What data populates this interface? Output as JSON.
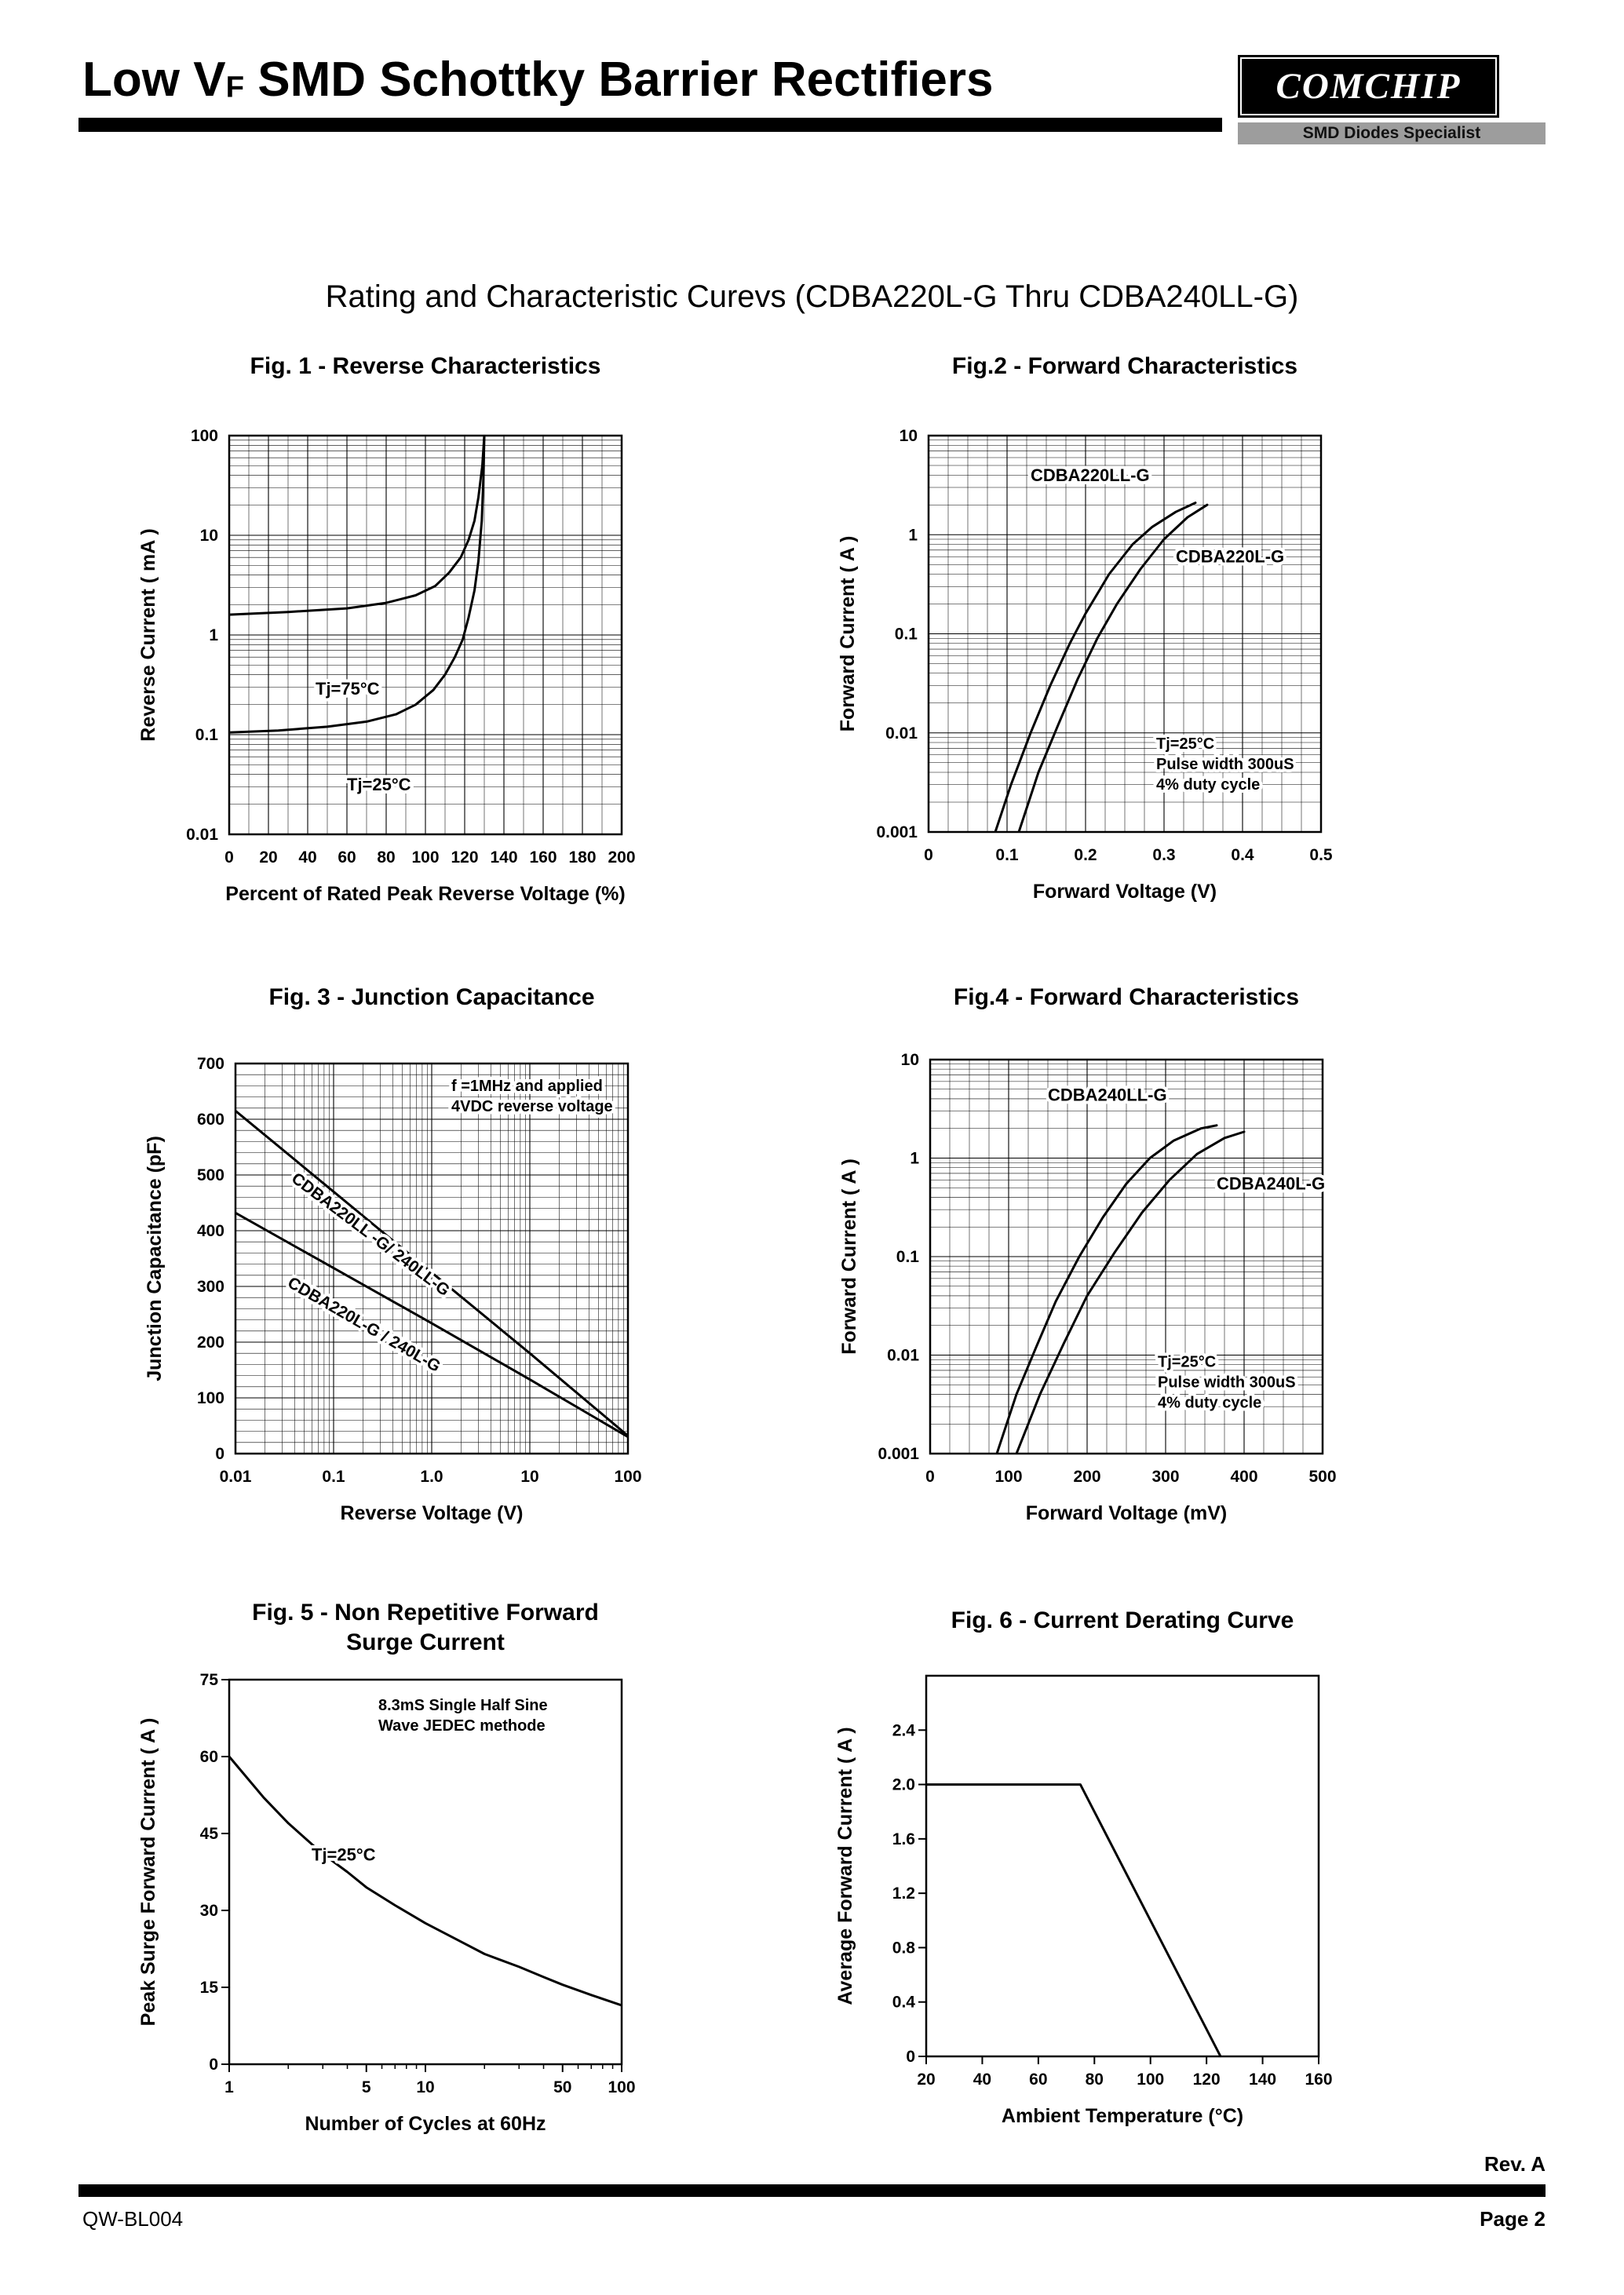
{
  "header": {
    "title_pre": "Low V",
    "title_sub": "F",
    "title_post": " SMD Schottky Barrier Rectifiers",
    "logo_text": "COMCHIP",
    "logo_tagline": "SMD Diodes Specialist"
  },
  "subtitle": "Rating and  Characteristic Curevs (CDBA220L-G Thru CDBA240LL-G)",
  "footer": {
    "rev": "Rev. A",
    "doc_number": "QW-BL004",
    "page": "Page 2"
  },
  "chart_data": [
    {
      "id": "fig1",
      "type": "line",
      "title": "Fig. 1 -  Reverse Characteristics",
      "xlabel": "Percent of Rated Peak Reverse Voltage (%)",
      "ylabel": "Reverse Current ( mA )",
      "x": {
        "type": "linear",
        "min": 0,
        "max": 200,
        "grid": true,
        "minorStep": 10,
        "majorStep": 20,
        "ticks": [
          [
            0,
            "0"
          ],
          [
            20,
            "20"
          ],
          [
            40,
            "40"
          ],
          [
            60,
            "60"
          ],
          [
            80,
            "80"
          ],
          [
            100,
            "100"
          ],
          [
            120,
            "120"
          ],
          [
            140,
            "140"
          ],
          [
            160,
            "160"
          ],
          [
            180,
            "180"
          ],
          [
            200,
            "200"
          ]
        ]
      },
      "y": {
        "type": "log",
        "min": 0.01,
        "max": 100,
        "grid": true,
        "ticks": [
          [
            100,
            "100"
          ],
          [
            10,
            "10"
          ],
          [
            1,
            "1"
          ],
          [
            0.1,
            "0.1"
          ],
          [
            0.01,
            "0.01"
          ]
        ]
      },
      "series": [
        {
          "name": "Tj-75C",
          "points": [
            [
              0,
              1.6
            ],
            [
              30,
              1.7
            ],
            [
              60,
              1.85
            ],
            [
              80,
              2.1
            ],
            [
              95,
              2.5
            ],
            [
              105,
              3.1
            ],
            [
              112,
              4.2
            ],
            [
              118,
              6
            ],
            [
              122,
              9
            ],
            [
              125,
              14
            ],
            [
              127,
              24
            ],
            [
              129,
              50
            ],
            [
              130,
              100
            ]
          ]
        },
        {
          "name": "Tj-25C",
          "points": [
            [
              0,
              0.105
            ],
            [
              25,
              0.11
            ],
            [
              50,
              0.12
            ],
            [
              70,
              0.135
            ],
            [
              85,
              0.16
            ],
            [
              95,
              0.2
            ],
            [
              104,
              0.28
            ],
            [
              110,
              0.4
            ],
            [
              115,
              0.6
            ],
            [
              119,
              0.9
            ],
            [
              122,
              1.5
            ],
            [
              125,
              2.8
            ],
            [
              127,
              5.5
            ],
            [
              128.7,
              14
            ],
            [
              129.6,
              40
            ],
            [
              130,
              100
            ]
          ]
        }
      ],
      "annotations": [
        {
          "lines": [
            "Tj=75°C"
          ],
          "fx": 0.22,
          "fy": 0.65,
          "size": 22
        },
        {
          "lines": [
            "Tj=25°C"
          ],
          "fx": 0.3,
          "fy": 0.89,
          "size": 22
        }
      ]
    },
    {
      "id": "fig2",
      "type": "line",
      "title": "Fig.2 -  Forward Characteristics",
      "xlabel": "Forward Voltage (V)",
      "ylabel": "Forward Current ( A )",
      "x": {
        "type": "linear",
        "min": 0,
        "max": 0.5,
        "grid": true,
        "minorStep": 0.025,
        "majorStep": 0.1,
        "ticks": [
          [
            0,
            "0"
          ],
          [
            0.1,
            "0.1"
          ],
          [
            0.2,
            "0.2"
          ],
          [
            0.3,
            "0.3"
          ],
          [
            0.4,
            "0.4"
          ],
          [
            0.5,
            "0.5"
          ]
        ]
      },
      "y": {
        "type": "log",
        "min": 0.001,
        "max": 10,
        "grid": true,
        "ticks": [
          [
            10,
            "10"
          ],
          [
            1,
            "1"
          ],
          [
            0.1,
            "0.1"
          ],
          [
            0.01,
            "0.01"
          ],
          [
            0.001,
            "0.001"
          ]
        ]
      },
      "series": [
        {
          "name": "CDBA220LL-G",
          "points": [
            [
              0.085,
              0.001
            ],
            [
              0.105,
              0.003
            ],
            [
              0.13,
              0.01
            ],
            [
              0.155,
              0.03
            ],
            [
              0.18,
              0.08
            ],
            [
              0.2,
              0.16
            ],
            [
              0.23,
              0.4
            ],
            [
              0.26,
              0.8
            ],
            [
              0.285,
              1.2
            ],
            [
              0.315,
              1.7
            ],
            [
              0.34,
              2.1
            ]
          ]
        },
        {
          "name": "CDBA220L-G",
          "points": [
            [
              0.115,
              0.001
            ],
            [
              0.14,
              0.004
            ],
            [
              0.165,
              0.012
            ],
            [
              0.19,
              0.035
            ],
            [
              0.215,
              0.09
            ],
            [
              0.24,
              0.2
            ],
            [
              0.27,
              0.45
            ],
            [
              0.3,
              0.9
            ],
            [
              0.33,
              1.5
            ],
            [
              0.355,
              2.0
            ]
          ]
        }
      ],
      "annotations": [
        {
          "lines": [
            "CDBA220LL-G"
          ],
          "fx": 0.26,
          "fy": 0.115,
          "size": 22
        },
        {
          "lines": [
            "CDBA220L-G"
          ],
          "fx": 0.63,
          "fy": 0.32,
          "size": 22
        },
        {
          "lines": [
            "Tj=25°C",
            "Pulse width 300uS",
            "4% duty cycle"
          ],
          "fx": 0.58,
          "fy": 0.79,
          "size": 20
        }
      ]
    },
    {
      "id": "fig3",
      "type": "line",
      "title": "Fig. 3 -  Junction Capacitance",
      "xlabel": "Reverse Voltage (V)",
      "ylabel": "Junction Capacitance  (pF)",
      "x": {
        "type": "log",
        "min": 0.01,
        "max": 100,
        "grid": true,
        "ticks": [
          [
            0.01,
            "0.01"
          ],
          [
            0.1,
            "0.1"
          ],
          [
            1,
            "1.0"
          ],
          [
            10,
            "10"
          ],
          [
            100,
            "100"
          ]
        ]
      },
      "y": {
        "type": "linear",
        "min": 0,
        "max": 700,
        "grid": true,
        "minorStep": 20,
        "majorStep": 100,
        "ticks": [
          [
            0,
            "0"
          ],
          [
            100,
            "100"
          ],
          [
            200,
            "200"
          ],
          [
            300,
            "300"
          ],
          [
            400,
            "400"
          ],
          [
            500,
            "500"
          ],
          [
            600,
            "600"
          ],
          [
            700,
            "700"
          ]
        ]
      },
      "series": [
        {
          "name": "CDBA220LL-G-240LL-G",
          "points": [
            [
              0.01,
              615
            ],
            [
              0.1,
              470
            ],
            [
              1,
              325
            ],
            [
              10,
              180
            ],
            [
              100,
              32
            ]
          ]
        },
        {
          "name": "CDBA220L-G-240L-G",
          "points": [
            [
              0.01,
              432
            ],
            [
              0.1,
              333
            ],
            [
              1,
              234
            ],
            [
              10,
              133
            ],
            [
              100,
              30
            ]
          ]
        }
      ],
      "annotations": [
        {
          "lines": [
            "f =1MHz and applied",
            "4VDC reverse voltage"
          ],
          "fx": 0.55,
          "fy": 0.07,
          "size": 20
        },
        {
          "lines": [
            "CDBA220LL -G/ 240LL-G"
          ],
          "fx": 0.14,
          "fy": 0.3,
          "size": 21,
          "rotate": 37
        },
        {
          "lines": [
            "CDBA220L-G /  240L-G"
          ],
          "fx": 0.13,
          "fy": 0.57,
          "size": 21,
          "rotate": 30
        }
      ]
    },
    {
      "id": "fig4",
      "type": "line",
      "title": "Fig.4 -  Forward Characteristics",
      "xlabel": "Forward Voltage (mV)",
      "ylabel": "Forward Current ( A )",
      "x": {
        "type": "linear",
        "min": 0,
        "max": 500,
        "grid": true,
        "minorStep": 25,
        "majorStep": 100,
        "ticks": [
          [
            0,
            "0"
          ],
          [
            100,
            "100"
          ],
          [
            200,
            "200"
          ],
          [
            300,
            "300"
          ],
          [
            400,
            "400"
          ],
          [
            500,
            "500"
          ]
        ]
      },
      "y": {
        "type": "log",
        "min": 0.001,
        "max": 10,
        "grid": true,
        "ticks": [
          [
            10,
            "10"
          ],
          [
            1,
            "1"
          ],
          [
            0.1,
            "0.1"
          ],
          [
            0.01,
            "0.01"
          ],
          [
            0.001,
            "0.001"
          ]
        ]
      },
      "series": [
        {
          "name": "CDBA240LL-G",
          "points": [
            [
              85,
              0.001
            ],
            [
              110,
              0.004
            ],
            [
              135,
              0.012
            ],
            [
              160,
              0.035
            ],
            [
              190,
              0.1
            ],
            [
              220,
              0.25
            ],
            [
              250,
              0.55
            ],
            [
              280,
              1.0
            ],
            [
              310,
              1.5
            ],
            [
              345,
              2.0
            ],
            [
              365,
              2.15
            ]
          ]
        },
        {
          "name": "CDBA240L-G",
          "points": [
            [
              110,
              0.001
            ],
            [
              140,
              0.004
            ],
            [
              170,
              0.013
            ],
            [
              200,
              0.04
            ],
            [
              235,
              0.11
            ],
            [
              270,
              0.28
            ],
            [
              305,
              0.6
            ],
            [
              340,
              1.1
            ],
            [
              375,
              1.6
            ],
            [
              400,
              1.85
            ]
          ]
        }
      ],
      "annotations": [
        {
          "lines": [
            "CDBA240LL-G"
          ],
          "fx": 0.3,
          "fy": 0.105,
          "size": 22
        },
        {
          "lines": [
            "CDBA240L-G"
          ],
          "fx": 0.73,
          "fy": 0.33,
          "size": 22
        },
        {
          "lines": [
            "Tj=25°C",
            "Pulse width 300uS",
            "4% duty cycle"
          ],
          "fx": 0.58,
          "fy": 0.78,
          "size": 20
        }
      ]
    },
    {
      "id": "fig5",
      "type": "line",
      "title": "Fig. 5 -  Non Repetitive Forward\nSurge Current",
      "xlabel": "Number of Cycles at 60Hz",
      "ylabel": "Peak Surge Forward Current ( A )",
      "x": {
        "type": "log",
        "min": 1,
        "max": 100,
        "grid": false,
        "ticks": [
          [
            1,
            "1"
          ],
          [
            5,
            "5"
          ],
          [
            10,
            "10"
          ],
          [
            50,
            "50"
          ],
          [
            100,
            "100"
          ]
        ],
        "minorTicks": [
          2,
          3,
          4,
          6,
          7,
          8,
          9,
          20,
          30,
          40,
          60,
          70,
          80,
          90
        ]
      },
      "y": {
        "type": "linear",
        "min": 0,
        "max": 75,
        "grid": false,
        "majorStep": 15,
        "ticks": [
          [
            0,
            "0"
          ],
          [
            15,
            "15"
          ],
          [
            30,
            "30"
          ],
          [
            45,
            "45"
          ],
          [
            60,
            "60"
          ],
          [
            75,
            "75"
          ]
        ]
      },
      "series": [
        {
          "name": "surge-current",
          "points": [
            [
              1,
              60
            ],
            [
              1.5,
              52
            ],
            [
              2,
              47
            ],
            [
              3,
              41
            ],
            [
              4,
              37.5
            ],
            [
              5,
              34.5
            ],
            [
              7,
              31
            ],
            [
              10,
              27.5
            ],
            [
              15,
              24
            ],
            [
              20,
              21.5
            ],
            [
              30,
              19
            ],
            [
              40,
              17
            ],
            [
              50,
              15.5
            ],
            [
              70,
              13.5
            ],
            [
              100,
              11.5
            ]
          ]
        }
      ],
      "annotations": [
        {
          "lines": [
            "8.3mS Single Half Sine",
            "Wave JEDEC methode"
          ],
          "fx": 0.38,
          "fy": 0.08,
          "size": 20
        },
        {
          "lines": [
            "Tj=25°C"
          ],
          "fx": 0.21,
          "fy": 0.47,
          "size": 22
        }
      ]
    },
    {
      "id": "fig6",
      "type": "line",
      "title": "Fig. 6 - Current Derating Curve",
      "xlabel": "Ambient Temperature (°C)",
      "ylabel": "Average Forward Current ( A )",
      "x": {
        "type": "linear",
        "min": 20,
        "max": 160,
        "grid": false,
        "majorStep": 20,
        "ticks": [
          [
            20,
            "20"
          ],
          [
            40,
            "40"
          ],
          [
            60,
            "60"
          ],
          [
            80,
            "80"
          ],
          [
            100,
            "100"
          ],
          [
            120,
            "120"
          ],
          [
            140,
            "140"
          ],
          [
            160,
            "160"
          ]
        ]
      },
      "y": {
        "type": "linear",
        "min": 0,
        "max": 2.8,
        "grid": false,
        "majorStep": 0.4,
        "ticks": [
          [
            0,
            "0"
          ],
          [
            0.4,
            "0.4"
          ],
          [
            0.8,
            "0.8"
          ],
          [
            1.2,
            "1.2"
          ],
          [
            1.6,
            "1.6"
          ],
          [
            2.0,
            "2.0"
          ],
          [
            2.4,
            "2.4"
          ]
        ]
      },
      "series": [
        {
          "name": "derating",
          "points": [
            [
              20,
              2.0
            ],
            [
              75,
              2.0
            ],
            [
              125,
              0
            ]
          ]
        }
      ],
      "annotations": []
    }
  ]
}
